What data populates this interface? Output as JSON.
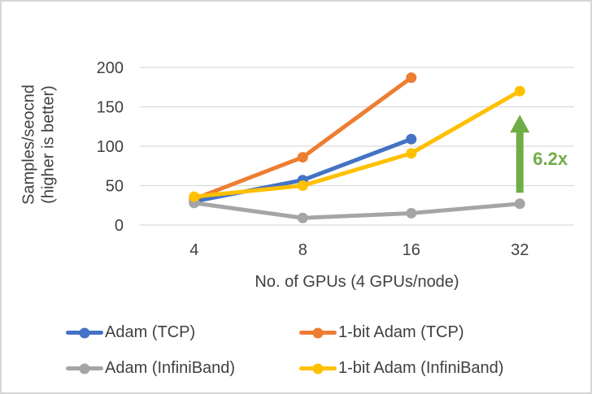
{
  "chart_data": {
    "type": "line",
    "title": "",
    "categories": [
      4,
      8,
      16,
      32
    ],
    "xlabel": "No. of GPUs (4 GPUs/node)",
    "ylabel": [
      "Samples/seocnd",
      "(higher is better)"
    ],
    "ylim": [
      0,
      200
    ],
    "yticks": [
      0,
      50,
      100,
      150,
      200
    ],
    "grid": true,
    "legend_position": "bottom",
    "colors": {
      "gridline": "#D9D9D9",
      "text": "#404040"
    },
    "series": [
      {
        "name": "Adam (TCP)",
        "color": "#4472C4",
        "x": [
          4,
          8,
          16
        ],
        "values": [
          30,
          57,
          109
        ]
      },
      {
        "name": "1-bit Adam (TCP)",
        "color": "#ED7D31",
        "x": [
          4,
          8,
          16
        ],
        "values": [
          33,
          86,
          187
        ]
      },
      {
        "name": "Adam (InfiniBand)",
        "color": "#A5A5A5",
        "x": [
          4,
          8,
          16,
          32
        ],
        "values": [
          28,
          9,
          15,
          27
        ]
      },
      {
        "name": "1-bit Adam (InfiniBand)",
        "color": "#FFC000",
        "x": [
          4,
          8,
          16,
          32
        ],
        "values": [
          36,
          50,
          91,
          170
        ]
      }
    ],
    "annotation": {
      "text": "6.2x",
      "color": "#70AD47",
      "arrow": {
        "at_x": 32,
        "from_value": 41,
        "to_value": 140
      }
    }
  }
}
